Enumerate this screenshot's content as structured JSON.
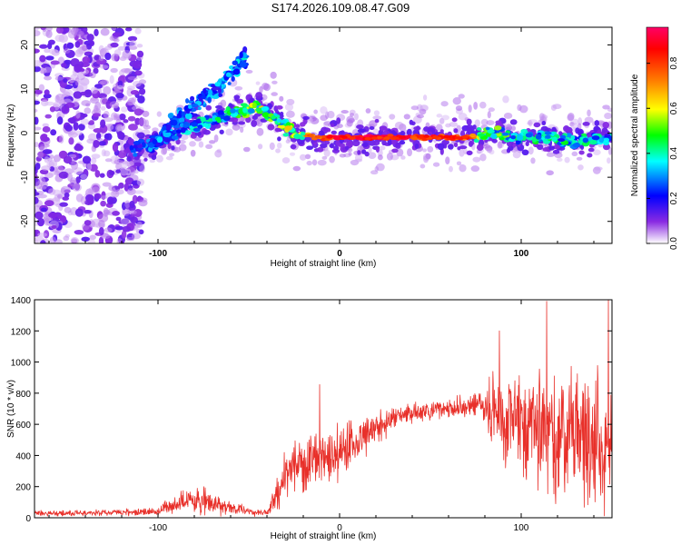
{
  "page_title": "S174.2026.109.08.47.G09",
  "chart_data": [
    {
      "type": "heatmap",
      "name": "spectrogram",
      "title": "S174.2026.109.08.47.G09",
      "xlabel": "Height of straight line (km)",
      "ylabel": "Frequency (Hz)",
      "xlim": [
        -168,
        150
      ],
      "ylim": [
        -25,
        24
      ],
      "xticks": [
        -100,
        0,
        100
      ],
      "yticks": [
        -20,
        -10,
        0,
        10,
        20
      ],
      "colorbar": {
        "label": "Normalized spectral amplitude",
        "range": [
          0,
          0.96
        ],
        "ticks": [
          0.0,
          0.2,
          0.4,
          0.6,
          0.8
        ],
        "colors": [
          "#ffffff",
          "#8a2be2",
          "#0000ff",
          "#00ffff",
          "#00ff00",
          "#ffff00",
          "#ff8000",
          "#ff0000",
          "#ff0066"
        ]
      },
      "ridge": [
        {
          "x": -115,
          "y": -4,
          "amp": 0.25
        },
        {
          "x": -100,
          "y": -2,
          "amp": 0.35
        },
        {
          "x": -85,
          "y": 1,
          "amp": 0.4
        },
        {
          "x": -70,
          "y": 3,
          "amp": 0.45
        },
        {
          "x": -55,
          "y": 5,
          "amp": 0.5
        },
        {
          "x": -45,
          "y": 6,
          "amp": 0.65
        },
        {
          "x": -35,
          "y": 3,
          "amp": 0.55
        },
        {
          "x": -25,
          "y": 0,
          "amp": 0.7
        },
        {
          "x": -10,
          "y": -1,
          "amp": 0.85
        },
        {
          "x": 0,
          "y": -1,
          "amp": 0.95
        },
        {
          "x": 25,
          "y": -1,
          "amp": 0.95
        },
        {
          "x": 50,
          "y": -1,
          "amp": 0.9
        },
        {
          "x": 70,
          "y": -1,
          "amp": 0.85
        },
        {
          "x": 85,
          "y": 0,
          "amp": 0.55
        },
        {
          "x": 100,
          "y": -1,
          "amp": 0.5
        },
        {
          "x": 115,
          "y": -1,
          "amp": 0.45
        },
        {
          "x": 130,
          "y": -2,
          "amp": 0.45
        },
        {
          "x": 145,
          "y": -1,
          "amp": 0.4
        }
      ],
      "branch": [
        {
          "x": -105,
          "y": -4,
          "amp": 0.3
        },
        {
          "x": -90,
          "y": 3,
          "amp": 0.35
        },
        {
          "x": -75,
          "y": 8,
          "amp": 0.35
        },
        {
          "x": -62,
          "y": 12,
          "amp": 0.35
        },
        {
          "x": -53,
          "y": 17,
          "amp": 0.4
        }
      ]
    },
    {
      "type": "line",
      "name": "snr",
      "xlabel": "Height of straight line (km)",
      "ylabel": "SNR (10 * v/v)",
      "xlim": [
        -168,
        150
      ],
      "ylim": [
        0,
        1400
      ],
      "xticks": [
        -100,
        0,
        100
      ],
      "yticks": [
        0,
        200,
        400,
        600,
        800,
        1000,
        1200,
        1400
      ],
      "color": "#e8302a",
      "envelope": {
        "x": [
          -168,
          -130,
          -100,
          -95,
          -85,
          -75,
          -65,
          -50,
          -40,
          -35,
          -30,
          -25,
          -20,
          -10,
          0,
          10,
          20,
          30,
          40,
          50,
          60,
          70,
          80,
          85,
          90,
          100,
          110,
          120,
          130,
          140,
          150
        ],
        "mean": [
          30,
          30,
          40,
          70,
          110,
          100,
          80,
          40,
          30,
          150,
          250,
          320,
          340,
          370,
          430,
          500,
          560,
          640,
          670,
          690,
          700,
          710,
          700,
          680,
          640,
          600,
          560,
          520,
          480,
          470,
          480
        ],
        "spread": [
          20,
          20,
          25,
          60,
          90,
          90,
          60,
          30,
          25,
          120,
          160,
          180,
          180,
          200,
          190,
          170,
          130,
          80,
          60,
          60,
          70,
          80,
          150,
          260,
          380,
          420,
          480,
          500,
          480,
          520,
          520
        ]
      },
      "peaks": [
        {
          "x": -11,
          "y": 855
        },
        {
          "x": 88,
          "y": 1200
        },
        {
          "x": 114,
          "y": 1390
        },
        {
          "x": 148,
          "y": 1400
        }
      ]
    }
  ]
}
